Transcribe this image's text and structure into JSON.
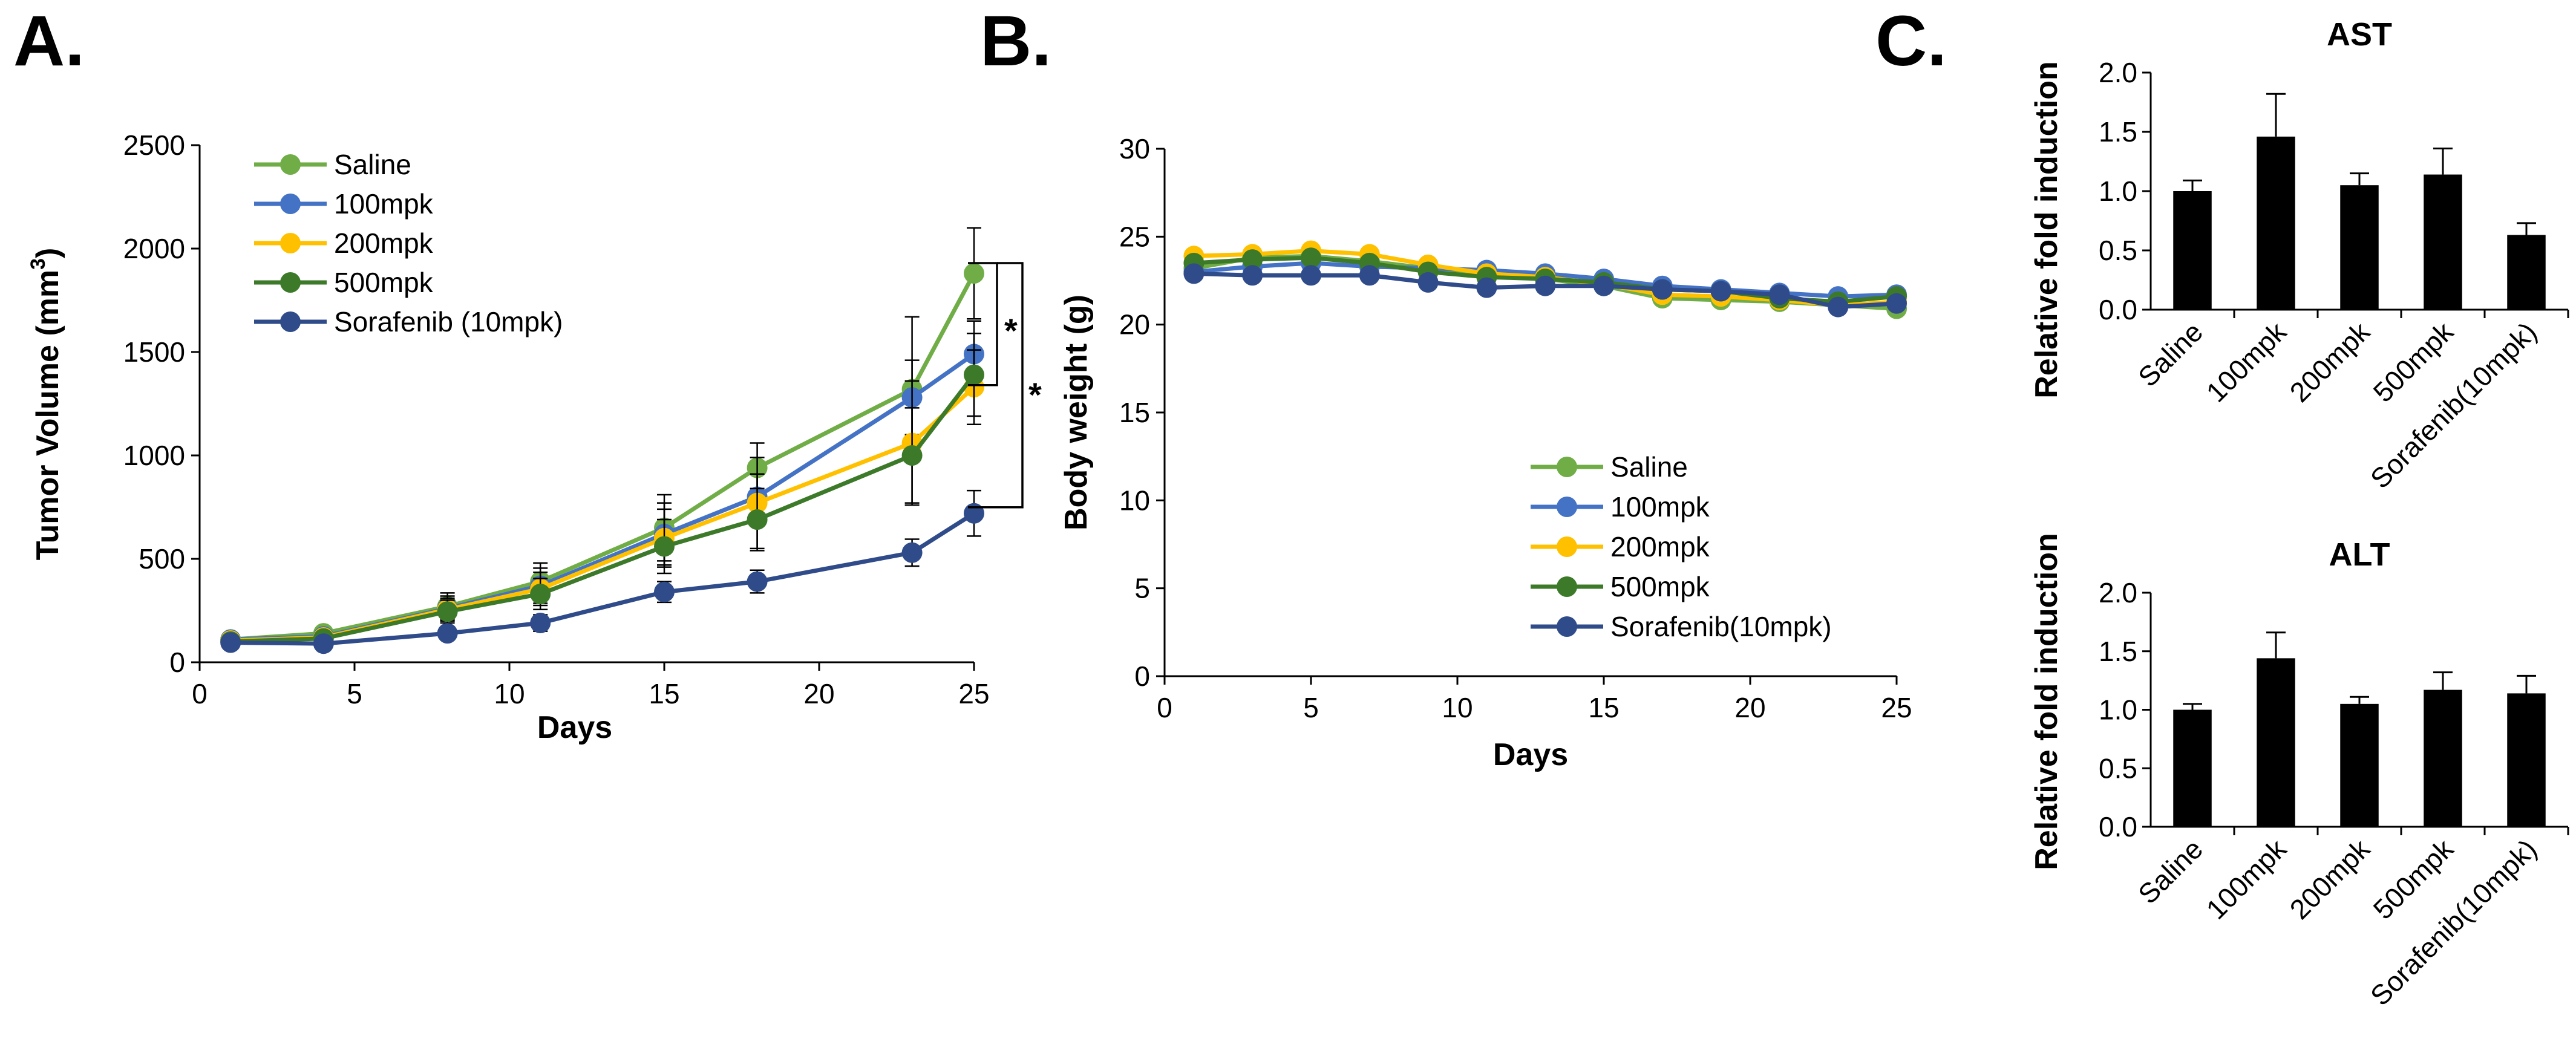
{
  "colors": {
    "saline": "#70AD47",
    "100mpk": "#4472C4",
    "200mpk": "#FFC000",
    "500mpk": "#3C7A2A",
    "sorafenib": "#2F4B8A",
    "bar": "#000000",
    "axis": "#000000"
  },
  "panels": {
    "a": {
      "label": "A."
    },
    "b": {
      "label": "B."
    },
    "c": {
      "label": "C."
    }
  },
  "chart_data": [
    {
      "id": "tumor",
      "type": "line",
      "panel": "A.",
      "title": "",
      "xlabel": "Days",
      "ylabel_main": "Tumor Volume (mm",
      "ylabel_sup": "3",
      "ylabel_end": ")",
      "xlim": [
        0,
        25
      ],
      "ylim": [
        0,
        2500
      ],
      "xticks": [
        "0",
        "5",
        "10",
        "15",
        "20",
        "25"
      ],
      "yticks": [
        "0",
        "500",
        "1000",
        "1500",
        "2000",
        "2500"
      ],
      "x": [
        1,
        4,
        8,
        11,
        15,
        18,
        23,
        25
      ],
      "legend_position": "top-left",
      "significance": [
        "*",
        "*"
      ],
      "series": [
        {
          "name": "Saline",
          "color_key": "saline",
          "values": [
            110,
            140,
            270,
            390,
            650,
            940,
            1320,
            1880
          ],
          "errors": [
            25,
            30,
            65,
            90,
            160,
            120,
            350,
            220
          ]
        },
        {
          "name": "100mpk",
          "color_key": "100mpk",
          "values": [
            110,
            125,
            260,
            370,
            620,
            800,
            1280,
            1490
          ],
          "errors": [
            20,
            25,
            60,
            85,
            150,
            110,
            180,
            160
          ]
        },
        {
          "name": "200mpk",
          "color_key": "200mpk",
          "values": [
            105,
            120,
            255,
            355,
            600,
            770,
            1060,
            1330
          ],
          "errors": [
            20,
            25,
            55,
            80,
            140,
            220,
            300,
            180
          ]
        },
        {
          "name": "500mpk",
          "color_key": "500mpk",
          "values": [
            100,
            115,
            245,
            330,
            560,
            690,
            1000,
            1390
          ],
          "errors": [
            20,
            25,
            55,
            75,
            130,
            150,
            230,
            200
          ]
        },
        {
          "name": "Sorafenib (10mpk)",
          "color_key": "sorafenib",
          "values": [
            95,
            90,
            140,
            190,
            340,
            390,
            530,
            720
          ],
          "errors": [
            15,
            20,
            30,
            40,
            50,
            55,
            65,
            110
          ]
        }
      ]
    },
    {
      "id": "weight",
      "type": "line",
      "panel": "B.",
      "title": "",
      "xlabel": "Days",
      "ylabel": "Body weight (g)",
      "xlim": [
        0,
        25
      ],
      "ylim": [
        0,
        30
      ],
      "xticks": [
        "0",
        "5",
        "10",
        "15",
        "20",
        "25"
      ],
      "yticks": [
        "0",
        "5",
        "10",
        "15",
        "20",
        "25",
        "30"
      ],
      "x": [
        1,
        3,
        5,
        7,
        9,
        11,
        13,
        15,
        17,
        19,
        21,
        23,
        25
      ],
      "legend_position": "center-right",
      "series": [
        {
          "name": "Saline",
          "color_key": "saline",
          "values": [
            23.2,
            23.8,
            23.9,
            23.6,
            23.2,
            22.9,
            22.6,
            22.2,
            21.5,
            21.4,
            21.3,
            21.1,
            20.9
          ]
        },
        {
          "name": "100mpk",
          "color_key": "100mpk",
          "values": [
            23.0,
            23.3,
            23.5,
            23.3,
            23.2,
            23.1,
            22.9,
            22.6,
            22.2,
            22.0,
            21.8,
            21.6,
            21.7
          ]
        },
        {
          "name": "200mpk",
          "color_key": "200mpk",
          "values": [
            23.9,
            24.0,
            24.2,
            24.0,
            23.4,
            22.9,
            22.7,
            22.3,
            21.7,
            21.6,
            21.4,
            21.1,
            21.3
          ]
        },
        {
          "name": "500mpk",
          "color_key": "500mpk",
          "values": [
            23.5,
            23.7,
            23.8,
            23.5,
            23.0,
            22.7,
            22.6,
            22.4,
            22.0,
            21.9,
            21.5,
            21.3,
            21.6
          ]
        },
        {
          "name": "Sorafenib(10mpk)",
          "color_key": "sorafenib",
          "values": [
            22.9,
            22.8,
            22.8,
            22.8,
            22.4,
            22.1,
            22.2,
            22.2,
            22.0,
            21.9,
            21.7,
            21.0,
            21.2
          ]
        }
      ]
    },
    {
      "id": "ast",
      "type": "bar",
      "panel": "C.",
      "title": "AST",
      "ylabel": "Relative fold induction",
      "ylim": [
        0,
        2.0
      ],
      "yticks": [
        "0.0",
        "0.5",
        "1.0",
        "1.5",
        "2.0"
      ],
      "categories": [
        "Saline",
        "100mpk",
        "200mpk",
        "500mpk",
        "Sorafenib(10mpk)"
      ],
      "values": [
        1.0,
        1.46,
        1.05,
        1.14,
        0.63
      ],
      "errors": [
        0.09,
        0.36,
        0.1,
        0.22,
        0.1
      ]
    },
    {
      "id": "alt",
      "type": "bar",
      "panel": "",
      "title": "ALT",
      "ylabel": "Relative fold induction",
      "ylim": [
        0,
        2.0
      ],
      "yticks": [
        "0.0",
        "0.5",
        "1.0",
        "1.5",
        "2.0"
      ],
      "categories": [
        "Saline",
        "100mpk",
        "200mpk",
        "500mpk",
        "Sorafenib(10mpk)"
      ],
      "values": [
        1.0,
        1.44,
        1.05,
        1.17,
        1.14
      ],
      "errors": [
        0.05,
        0.22,
        0.06,
        0.15,
        0.15
      ]
    }
  ]
}
